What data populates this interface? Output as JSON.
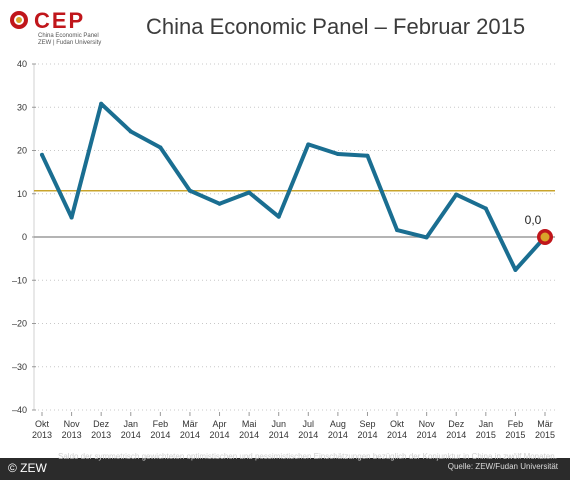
{
  "brand": {
    "logo_text": "CEP",
    "logo_sub1": "China Economic Panel",
    "logo_sub2": "ZEW | Fudan University",
    "copyright": "© ZEW",
    "accent_red": "#c0161b",
    "accent_gold": "#d9a32a"
  },
  "chart_data": {
    "type": "line",
    "title": "China Economic Panel – Februar 2015",
    "categories": [
      [
        "Okt",
        "2013"
      ],
      [
        "Nov",
        "2013"
      ],
      [
        "Dez",
        "2013"
      ],
      [
        "Jan",
        "2014"
      ],
      [
        "Feb",
        "2014"
      ],
      [
        "Mär",
        "2014"
      ],
      [
        "Apr",
        "2014"
      ],
      [
        "Mai",
        "2014"
      ],
      [
        "Jun",
        "2014"
      ],
      [
        "Jul",
        "2014"
      ],
      [
        "Aug",
        "2014"
      ],
      [
        "Sep",
        "2014"
      ],
      [
        "Okt",
        "2014"
      ],
      [
        "Nov",
        "2014"
      ],
      [
        "Dez",
        "2014"
      ],
      [
        "Jan",
        "2015"
      ],
      [
        "Feb",
        "2015"
      ],
      [
        "Mär",
        "2015"
      ]
    ],
    "series": [
      {
        "values": [
          19.0,
          4.5,
          30.8,
          24.4,
          20.7,
          10.7,
          7.7,
          10.3,
          4.7,
          21.4,
          19.2,
          18.8,
          1.6,
          -0.1,
          9.8,
          6.6,
          -7.6,
          0.0
        ],
        "color": "#1a6e91"
      }
    ],
    "reference_line": {
      "value": 10.7,
      "color": "#c9a42c"
    },
    "zero_line_color": "#9b9b9b",
    "highlight": {
      "index": 17,
      "label": "0,0"
    },
    "yticks": [
      "40",
      "30",
      "20",
      "10",
      "0",
      "–10",
      "–20",
      "–30",
      "–40"
    ],
    "ylim": [
      -40,
      40
    ],
    "grid": "horizontal dotted"
  },
  "footnote": {
    "text": "Saldo der symmetrisch gewichteten optimistischen und pessimistischen Einschätzungen bezüglich der Konjunktur in China in zwölf Monaten.",
    "source": "Quelle: ZEW/Fudan Universität"
  }
}
